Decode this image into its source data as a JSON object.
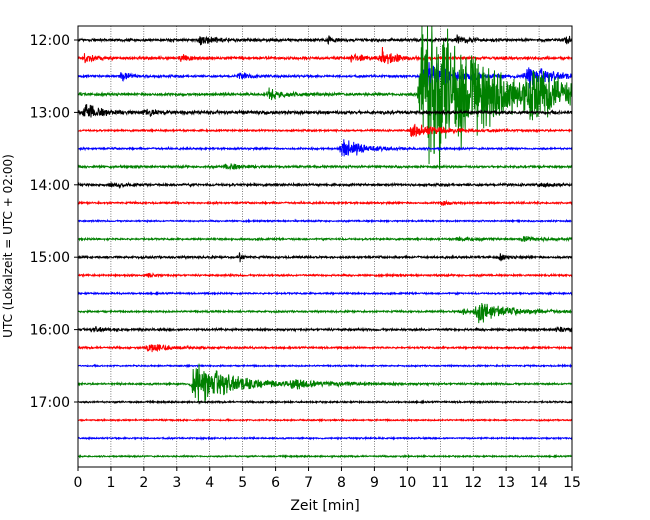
{
  "chart_data": {
    "type": "line",
    "title": "",
    "xlabel": "Zeit  [min]",
    "ylabel": "UTC (Lokalzeit = UTC + 02:00)",
    "xlim": [
      0,
      15
    ],
    "x_ticks": [
      0,
      1,
      2,
      3,
      4,
      5,
      6,
      7,
      8,
      9,
      10,
      11,
      12,
      13,
      14,
      15
    ],
    "y_ticks": [
      {
        "label": "12:00",
        "trace": 0
      },
      {
        "label": "13:00",
        "trace": 4
      },
      {
        "label": "14:00",
        "trace": 8
      },
      {
        "label": "15:00",
        "trace": 12
      },
      {
        "label": "16:00",
        "trace": 16
      },
      {
        "label": "17:00",
        "trace": 20
      }
    ],
    "grid": {
      "x": true,
      "y": false
    },
    "trace_interval_minutes": 15,
    "color_cycle": [
      "#000000",
      "#ff0000",
      "#0000ff",
      "#008000"
    ],
    "traces": [
      {
        "start": "12:00",
        "color": "#000000",
        "events": [
          {
            "x": 3.7,
            "amp": 6,
            "decay": 0.4
          },
          {
            "x": 7.6,
            "amp": 4,
            "decay": 0.2
          },
          {
            "x": 11.5,
            "amp": 5,
            "decay": 0.3
          },
          {
            "x": 14.8,
            "amp": 5,
            "decay": 0.3
          }
        ],
        "noise": 1.5
      },
      {
        "start": "12:15",
        "color": "#ff0000",
        "events": [
          {
            "x": 0.2,
            "amp": 5,
            "decay": 0.3
          },
          {
            "x": 3.1,
            "amp": 4,
            "decay": 0.3
          },
          {
            "x": 8.3,
            "amp": 6,
            "decay": 0.3
          },
          {
            "x": 9.2,
            "amp": 11,
            "decay": 0.4
          }
        ],
        "noise": 1.5
      },
      {
        "start": "12:30",
        "color": "#0000ff",
        "events": [
          {
            "x": 1.3,
            "amp": 5,
            "decay": 0.3
          },
          {
            "x": 4.9,
            "amp": 4,
            "decay": 0.3
          },
          {
            "x": 10.5,
            "amp": 22,
            "decay": 0.8
          },
          {
            "x": 13.6,
            "amp": 14,
            "decay": 0.7
          }
        ],
        "noise": 1.2
      },
      {
        "start": "12:45",
        "color": "#008000",
        "events": [
          {
            "x": 5.8,
            "amp": 6,
            "decay": 0.5
          },
          {
            "x": 10.4,
            "amp": 120,
            "decay": 1.6
          },
          {
            "x": 13.7,
            "amp": 20,
            "decay": 1.2
          }
        ],
        "noise": 1.5
      },
      {
        "start": "13:00",
        "color": "#000000",
        "events": [
          {
            "x": 0.2,
            "amp": 11,
            "decay": 0.4
          },
          {
            "x": 2.0,
            "amp": 4,
            "decay": 0.4
          }
        ],
        "noise": 1.8
      },
      {
        "start": "13:15",
        "color": "#ff0000",
        "events": [
          {
            "x": 10.1,
            "amp": 8,
            "decay": 0.9
          }
        ],
        "noise": 1.0
      },
      {
        "start": "13:30",
        "color": "#0000ff",
        "events": [
          {
            "x": 8.0,
            "amp": 14,
            "decay": 0.6
          }
        ],
        "noise": 1.0
      },
      {
        "start": "13:45",
        "color": "#008000",
        "events": [
          {
            "x": 4.5,
            "amp": 4,
            "decay": 0.4
          }
        ],
        "noise": 1.2
      },
      {
        "start": "14:00",
        "color": "#000000",
        "events": [
          {
            "x": 1.0,
            "amp": 3,
            "decay": 0.3
          },
          {
            "x": 14.0,
            "amp": 3,
            "decay": 0.3
          }
        ],
        "noise": 1.3
      },
      {
        "start": "14:15",
        "color": "#ff0000",
        "events": [
          {
            "x": 11.0,
            "amp": 3,
            "decay": 0.3
          }
        ],
        "noise": 1.0
      },
      {
        "start": "14:30",
        "color": "#0000ff",
        "events": [],
        "noise": 0.8
      },
      {
        "start": "14:45",
        "color": "#008000",
        "events": [
          {
            "x": 11.5,
            "amp": 3,
            "decay": 0.6
          },
          {
            "x": 13.5,
            "amp": 3,
            "decay": 0.6
          }
        ],
        "noise": 1.0
      },
      {
        "start": "15:00",
        "color": "#000000",
        "events": [
          {
            "x": 4.9,
            "amp": 6,
            "decay": 0.1
          },
          {
            "x": 12.8,
            "amp": 4,
            "decay": 0.2
          }
        ],
        "noise": 1.2
      },
      {
        "start": "15:15",
        "color": "#ff0000",
        "events": [
          {
            "x": 2.1,
            "amp": 3,
            "decay": 0.2
          }
        ],
        "noise": 1.0
      },
      {
        "start": "15:30",
        "color": "#0000ff",
        "events": [],
        "noise": 0.9
      },
      {
        "start": "15:45",
        "color": "#008000",
        "events": [
          {
            "x": 11.6,
            "amp": 4,
            "decay": 0.4
          },
          {
            "x": 12.1,
            "amp": 12,
            "decay": 0.9
          }
        ],
        "noise": 1.0
      },
      {
        "start": "16:00",
        "color": "#000000",
        "events": [
          {
            "x": 0.5,
            "amp": 3,
            "decay": 0.3
          },
          {
            "x": 14.5,
            "amp": 3,
            "decay": 0.3
          }
        ],
        "noise": 1.2
      },
      {
        "start": "16:15",
        "color": "#ff0000",
        "events": [
          {
            "x": 2.1,
            "amp": 6,
            "decay": 0.6
          }
        ],
        "noise": 1.0
      },
      {
        "start": "16:30",
        "color": "#0000ff",
        "events": [],
        "noise": 0.8
      },
      {
        "start": "16:45",
        "color": "#008000",
        "events": [
          {
            "x": 3.5,
            "amp": 26,
            "decay": 1.1
          },
          {
            "x": 6.5,
            "amp": 5,
            "decay": 1.2
          }
        ],
        "noise": 1.0
      },
      {
        "start": "17:00",
        "color": "#000000",
        "events": [],
        "noise": 0.9
      },
      {
        "start": "17:15",
        "color": "#ff0000",
        "events": [],
        "noise": 0.8
      },
      {
        "start": "17:30",
        "color": "#0000ff",
        "events": [],
        "noise": 0.8
      },
      {
        "start": "17:45",
        "color": "#008000",
        "events": [],
        "noise": 0.8
      }
    ]
  }
}
